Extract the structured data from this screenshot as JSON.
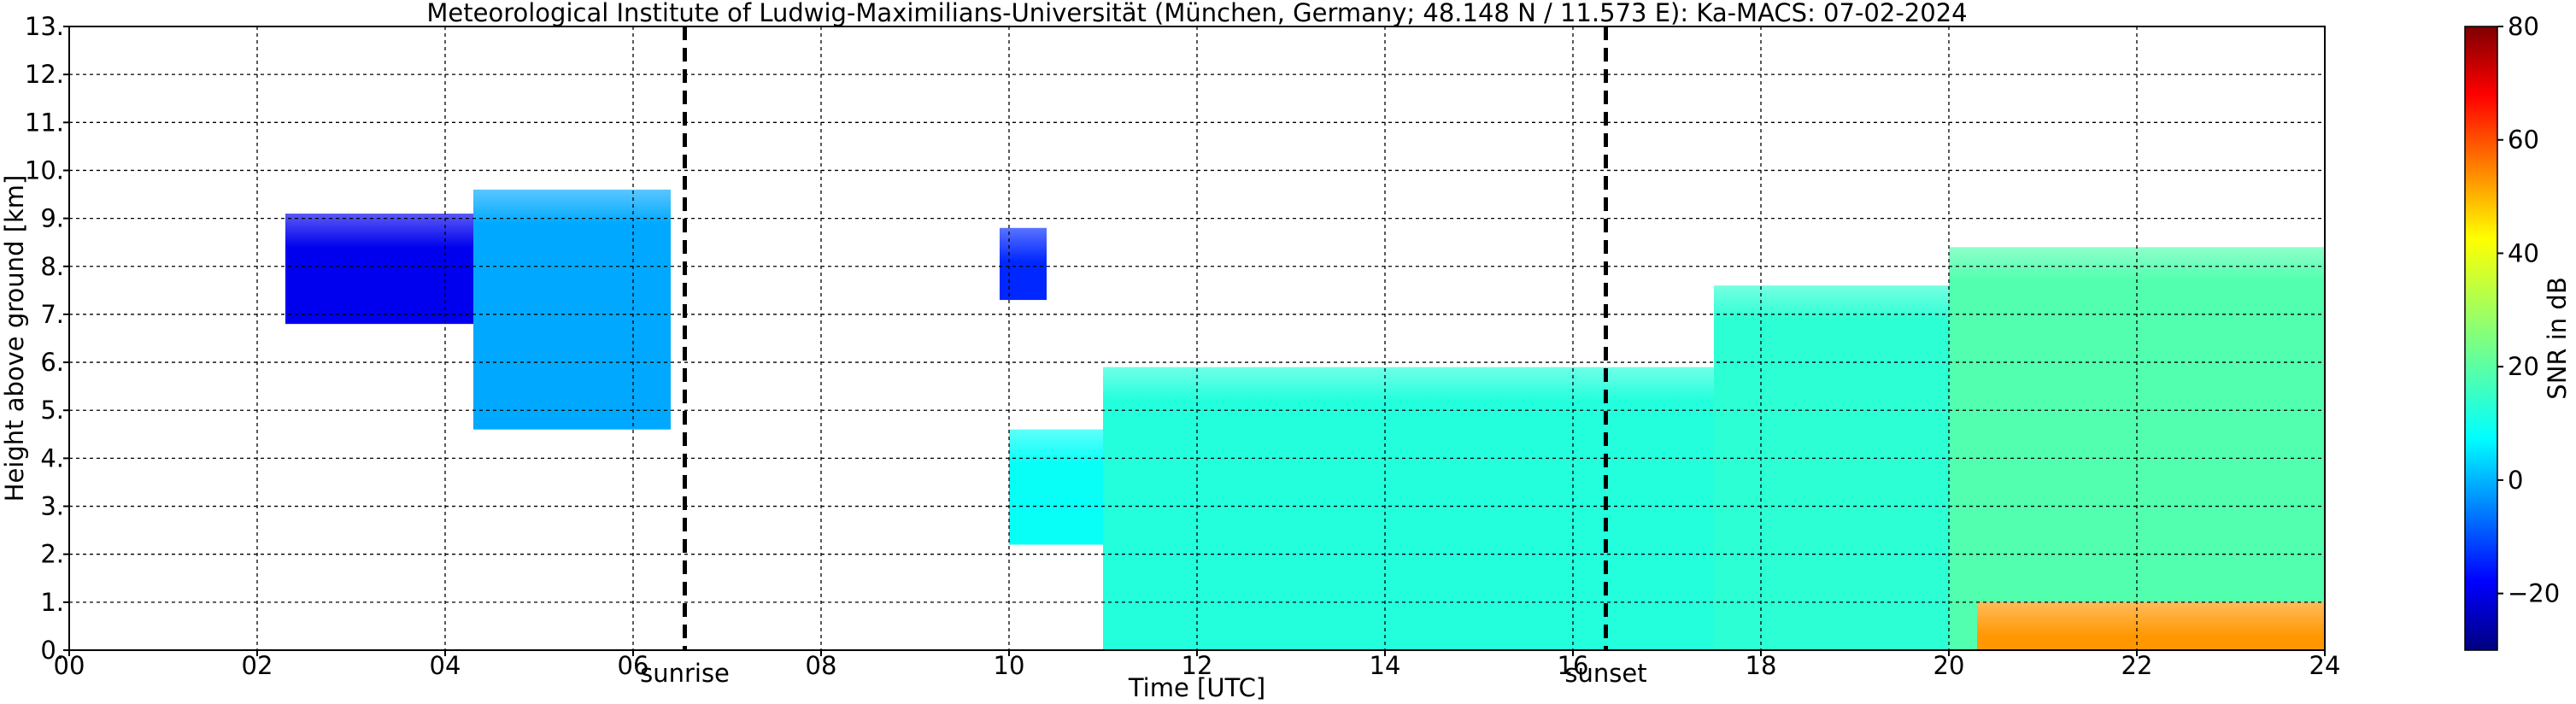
{
  "chart_data": {
    "type": "heatmap",
    "title": "Meteorological Institute of Ludwig-Maximilians-Universität (München, Germany; 48.148 N / 11.573 E):    Ka-MACS: 07-02-2024",
    "xlabel": "Time [UTC]",
    "ylabel": "Height above ground [km]",
    "xlim": [
      0,
      24
    ],
    "ylim": [
      0,
      13
    ],
    "xticks": [
      0,
      2,
      4,
      6,
      8,
      10,
      12,
      14,
      16,
      18,
      20,
      22,
      24
    ],
    "xtick_labels": [
      "00",
      "02",
      "04",
      "06",
      "08",
      "10",
      "12",
      "14",
      "16",
      "18",
      "20",
      "22",
      "24"
    ],
    "yticks": [
      0,
      1,
      2,
      3,
      4,
      5,
      6,
      7,
      8,
      9,
      10,
      11,
      12,
      13
    ],
    "ytick_labels": [
      "0.",
      "1.",
      "2.",
      "3.",
      "4.",
      "5.",
      "6.",
      "7.",
      "8.",
      "9.",
      "10.",
      "11.",
      "12.",
      "13."
    ],
    "grid": true,
    "markers": [
      {
        "label": "sunrise",
        "x": 6.55
      },
      {
        "label": "sunset",
        "x": 16.35
      }
    ],
    "colorbar": {
      "label": "SNR in dB",
      "range": [
        -30,
        80
      ],
      "ticks": [
        -20,
        0,
        20,
        40,
        60,
        80
      ],
      "tick_labels": [
        "−20",
        "0",
        "20",
        "40",
        "60",
        "80"
      ],
      "colormap": "jet"
    },
    "echoes": [
      {
        "x": [
          2.3,
          4.3
        ],
        "y": [
          6.8,
          9.1
        ],
        "snr": -18
      },
      {
        "x": [
          4.3,
          6.4
        ],
        "y": [
          4.6,
          9.6
        ],
        "snr": 2
      },
      {
        "x": [
          9.9,
          10.4
        ],
        "y": [
          7.3,
          8.8
        ],
        "snr": -12
      },
      {
        "x": [
          10.0,
          12.0
        ],
        "y": [
          2.2,
          4.6
        ],
        "snr": 12
      },
      {
        "x": [
          11.0,
          17.5
        ],
        "y": [
          0.0,
          5.9
        ],
        "snr": 15
      },
      {
        "x": [
          17.5,
          20.0
        ],
        "y": [
          0.0,
          7.6
        ],
        "snr": 16
      },
      {
        "x": [
          20.0,
          24.0
        ],
        "y": [
          0.0,
          8.4
        ],
        "snr": 20
      },
      {
        "x": [
          20.3,
          24.0
        ],
        "y": [
          0.0,
          1.0
        ],
        "snr": 50
      }
    ]
  }
}
